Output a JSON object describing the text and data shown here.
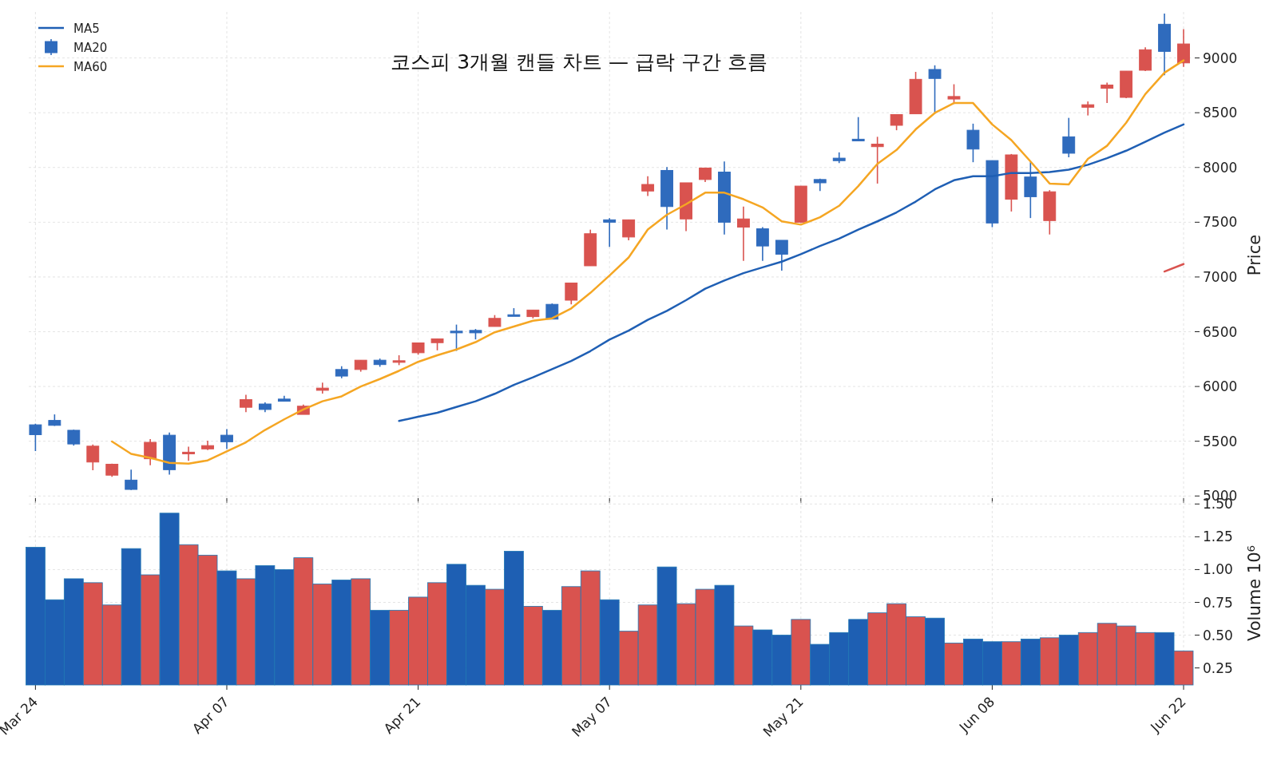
{
  "chart_data": [
    {
      "type": "candlestick",
      "title": "코스피 3개월 캔들 차트 — 급락 구간 흐름",
      "ylabel": "Price",
      "categories": [
        null,
        null,
        null,
        null,
        null,
        null,
        null,
        null,
        null,
        null,
        null,
        null,
        null,
        null,
        null,
        null,
        null,
        null,
        null,
        null,
        null,
        null,
        null,
        null,
        null,
        null,
        null,
        null,
        null,
        null,
        null,
        null,
        null,
        null,
        null,
        null,
        null,
        null,
        null,
        null,
        null,
        null,
        null,
        null,
        null,
        null,
        null,
        null,
        null,
        null,
        null,
        null,
        null,
        null,
        null,
        null,
        null,
        null,
        null,
        null,
        null
      ],
      "ylim": [
        4980,
        9420
      ],
      "yticks": [
        5000,
        5500,
        6000,
        6500,
        7000,
        7500,
        8000,
        8500,
        9000
      ],
      "grid": true,
      "legend": "top left",
      "tick_labels": "y",
      "series": [
        {
          "name": "MA5",
          "type": "line",
          "color": "#1f5fb4",
          "values": [
            null,
            null,
            null,
            null,
            null,
            null,
            null,
            null,
            null,
            null,
            null,
            null,
            null,
            null,
            null,
            null,
            null,
            null,
            null,
            5685,
            5723,
            5760,
            5813,
            5865,
            5933,
            6015,
            6083,
            6158,
            6233,
            6323,
            6428,
            6510,
            6608,
            6690,
            6788,
            6893,
            6968,
            7035,
            7088,
            7140,
            7208,
            7283,
            7350,
            7433,
            7508,
            7590,
            7688,
            7800,
            7883,
            7920,
            7920,
            7950,
            7950,
            7958,
            7980,
            8025,
            8085,
            8153,
            8235,
            8318,
            8393
          ]
        },
        {
          "name": "MA20",
          "type": "candlestick",
          "color": "#2f6bbd",
          "colors": [
            "#2f6bbd",
            "#2f6bbd",
            "#2f6bbd",
            "#d9534f",
            "#d9534f",
            "#2f6bbd",
            "#d9534f",
            "#2f6bbd",
            "#d9534f",
            "#d9534f",
            "#2f6bbd",
            "#d9534f",
            "#2f6bbd",
            "#2f6bbd",
            "#d9534f",
            "#d9534f",
            "#2f6bbd",
            "#d9534f",
            "#2f6bbd",
            "#d9534f",
            "#d9534f",
            "#d9534f",
            "#2f6bbd",
            "#2f6bbd",
            "#d9534f",
            "#2f6bbd",
            "#d9534f",
            "#2f6bbd",
            "#d9534f",
            "#d9534f",
            "#2f6bbd",
            "#d9534f",
            "#d9534f",
            "#2f6bbd",
            "#d9534f",
            "#d9534f",
            "#2f6bbd",
            "#d9534f",
            "#2f6bbd",
            "#2f6bbd",
            "#d9534f",
            "#2f6bbd",
            "#2f6bbd",
            "#2f6bbd",
            "#d9534f",
            "#d9534f",
            "#d9534f",
            "#2f6bbd",
            "#d9534f",
            "#2f6bbd",
            "#2f6bbd",
            "#d9534f",
            "#2f6bbd",
            "#d9534f",
            "#2f6bbd",
            "#d9534f",
            "#d9534f",
            "#d9534f",
            "#d9534f",
            "#2f6bbd",
            "#d9534f"
          ],
          "ohlc": [
            [
              5650,
              5660,
              5410,
              5560
            ],
            [
              5690,
              5745,
              5640,
              5645
            ],
            [
              5600,
              5605,
              5460,
              5475
            ],
            [
              5310,
              5470,
              5235,
              5455
            ],
            [
              5190,
              5295,
              5175,
              5290
            ],
            [
              5145,
              5240,
              5055,
              5060
            ],
            [
              5340,
              5520,
              5280,
              5490
            ],
            [
              5555,
              5580,
              5195,
              5240
            ],
            [
              5385,
              5450,
              5320,
              5400
            ],
            [
              5430,
              5505,
              5420,
              5460
            ],
            [
              5555,
              5610,
              5430,
              5495
            ],
            [
              5810,
              5925,
              5765,
              5880
            ],
            [
              5840,
              5855,
              5765,
              5790
            ],
            [
              5885,
              5915,
              5865,
              5865
            ],
            [
              5745,
              5835,
              5745,
              5820
            ],
            [
              5965,
              6035,
              5935,
              5985
            ],
            [
              6155,
              6185,
              6075,
              6095
            ],
            [
              6155,
              6240,
              6135,
              6240
            ],
            [
              6240,
              6255,
              6180,
              6200
            ],
            [
              6225,
              6285,
              6195,
              6235
            ],
            [
              6308,
              6400,
              6290,
              6398
            ],
            [
              6400,
              6435,
              6330,
              6435
            ],
            [
              6505,
              6565,
              6325,
              6490
            ],
            [
              6512,
              6525,
              6430,
              6490
            ],
            [
              6548,
              6652,
              6548,
              6622
            ],
            [
              6655,
              6715,
              6645,
              6645
            ],
            [
              6638,
              6698,
              6622,
              6698
            ],
            [
              6750,
              6758,
              6615,
              6615
            ],
            [
              6788,
              6945,
              6750,
              6945
            ],
            [
              7102,
              7432,
              7102,
              7395
            ],
            [
              7522,
              7537,
              7275,
              7500
            ],
            [
              7365,
              7522,
              7335,
              7522
            ],
            [
              7785,
              7920,
              7740,
              7845
            ],
            [
              7973,
              8003,
              7433,
              7643
            ],
            [
              7530,
              7860,
              7418,
              7860
            ],
            [
              7890,
              7995,
              7868,
              7995
            ],
            [
              7958,
              8055,
              7388,
              7500
            ],
            [
              7455,
              7643,
              7148,
              7530
            ],
            [
              7440,
              7455,
              7148,
              7283
            ],
            [
              7335,
              7335,
              7058,
              7208
            ],
            [
              7500,
              7830,
              7493,
              7830
            ],
            [
              7890,
              7898,
              7785,
              7860
            ],
            [
              8085,
              8138,
              8040,
              8062
            ],
            [
              8258,
              8460,
              8243,
              8243
            ],
            [
              8190,
              8280,
              7853,
              8213
            ],
            [
              8385,
              8483,
              8340,
              8483
            ],
            [
              8490,
              8873,
              8490,
              8805
            ],
            [
              8895,
              8933,
              8490,
              8813
            ],
            [
              8625,
              8760,
              8580,
              8648
            ],
            [
              8340,
              8400,
              8048,
              8168
            ],
            [
              8063,
              8063,
              7455,
              7493
            ],
            [
              7710,
              8123,
              7598,
              8115
            ],
            [
              7913,
              8048,
              7538,
              7733
            ],
            [
              7515,
              7793,
              7388,
              7778
            ],
            [
              8280,
              8453,
              8093,
              8130
            ],
            [
              8550,
              8603,
              8475,
              8573
            ],
            [
              8723,
              8775,
              8588,
              8753
            ],
            [
              8640,
              8880,
              8633,
              8880
            ],
            [
              8888,
              9098,
              8880,
              9075
            ],
            [
              9308,
              9405,
              8843,
              9060
            ],
            [
              8955,
              9263,
              8918,
              9128
            ]
          ]
        },
        {
          "name": "MA60",
          "type": "line",
          "color": "#f5a623",
          "values": [
            null,
            null,
            null,
            null,
            5498,
            5385,
            5348,
            5303,
            5295,
            5325,
            5408,
            5490,
            5603,
            5700,
            5790,
            5865,
            5910,
            6000,
            6068,
            6143,
            6225,
            6285,
            6338,
            6405,
            6495,
            6548,
            6600,
            6623,
            6713,
            6855,
            7013,
            7178,
            7433,
            7568,
            7665,
            7770,
            7770,
            7710,
            7635,
            7508,
            7478,
            7545,
            7650,
            7830,
            8033,
            8160,
            8348,
            8498,
            8588,
            8588,
            8393,
            8250,
            8055,
            7853,
            7845,
            8078,
            8198,
            8408,
            8670,
            8865,
            8978
          ]
        },
        {
          "type": "line",
          "color": "#d9534f",
          "values": [
            null,
            null,
            null,
            null,
            null,
            null,
            null,
            null,
            null,
            null,
            null,
            null,
            null,
            null,
            null,
            null,
            null,
            null,
            null,
            null,
            null,
            null,
            null,
            null,
            null,
            null,
            null,
            null,
            null,
            null,
            null,
            null,
            null,
            null,
            null,
            null,
            null,
            null,
            null,
            null,
            null,
            null,
            null,
            null,
            null,
            null,
            null,
            null,
            null,
            null,
            null,
            null,
            null,
            null,
            null,
            null,
            null,
            null,
            null,
            7050,
            7118
          ]
        }
      ]
    },
    {
      "type": "bar",
      "ylabel": "Volume 10⁶",
      "categories": [
        "Mar 24",
        null,
        null,
        null,
        null,
        null,
        null,
        null,
        null,
        null,
        "Apr 07",
        null,
        null,
        null,
        null,
        null,
        null,
        null,
        null,
        null,
        "Apr 21",
        null,
        null,
        null,
        null,
        null,
        null,
        null,
        null,
        null,
        "May 07",
        null,
        null,
        null,
        null,
        null,
        null,
        null,
        null,
        null,
        "May 21",
        null,
        null,
        null,
        null,
        null,
        null,
        null,
        null,
        null,
        "Jun 08",
        null,
        null,
        null,
        null,
        null,
        null,
        null,
        null,
        null,
        "Jun 22"
      ],
      "ylim": [
        0.12,
        1.52
      ],
      "yticks": [
        {
          "value": 0.25,
          "label": "0.25"
        },
        {
          "value": 0.5,
          "label": "0.50"
        },
        {
          "value": 0.75,
          "label": "0.75"
        },
        {
          "value": 1.0,
          "label": "1.00"
        },
        {
          "value": 1.25,
          "label": "1.25"
        },
        {
          "value": 1.5,
          "label": "1.50"
        }
      ],
      "grid": true,
      "values": [
        1.17,
        0.77,
        0.93,
        0.9,
        0.73,
        1.16,
        0.96,
        1.43,
        1.19,
        1.11,
        0.99,
        0.93,
        1.03,
        1.0,
        1.09,
        0.89,
        0.92,
        0.93,
        0.69,
        0.69,
        0.79,
        0.9,
        1.04,
        0.88,
        0.85,
        1.14,
        0.72,
        0.69,
        0.87,
        0.99,
        0.77,
        0.53,
        0.73,
        1.02,
        0.74,
        0.85,
        0.88,
        0.57,
        0.54,
        0.5,
        0.62,
        0.43,
        0.52,
        0.62,
        0.67,
        0.74,
        0.64,
        0.63,
        0.44,
        0.47,
        0.45,
        0.45,
        0.47,
        0.48,
        0.5,
        0.52,
        0.59,
        0.57,
        0.52,
        0.52,
        0.38
      ],
      "colors": [
        "#1e5fb3",
        "#1e5fb3",
        "#1e5fb3",
        "#d9534f",
        "#d9534f",
        "#1e5fb3",
        "#d9534f",
        "#1e5fb3",
        "#d9534f",
        "#d9534f",
        "#1e5fb3",
        "#d9534f",
        "#1e5fb3",
        "#1e5fb3",
        "#d9534f",
        "#d9534f",
        "#1e5fb3",
        "#d9534f",
        "#1e5fb3",
        "#d9534f",
        "#d9534f",
        "#d9534f",
        "#1e5fb3",
        "#1e5fb3",
        "#d9534f",
        "#1e5fb3",
        "#d9534f",
        "#1e5fb3",
        "#d9534f",
        "#d9534f",
        "#1e5fb3",
        "#d9534f",
        "#d9534f",
        "#1e5fb3",
        "#d9534f",
        "#d9534f",
        "#1e5fb3",
        "#d9534f",
        "#1e5fb3",
        "#1e5fb3",
        "#d9534f",
        "#1e5fb3",
        "#1e5fb3",
        "#1e5fb3",
        "#d9534f",
        "#d9534f",
        "#d9534f",
        "#1e5fb3",
        "#d9534f",
        "#1e5fb3",
        "#1e5fb3",
        "#d9534f",
        "#1e5fb3",
        "#d9534f",
        "#1e5fb3",
        "#d9534f",
        "#d9534f",
        "#d9534f",
        "#d9534f",
        "#1e5fb3",
        "#d9534f"
      ]
    }
  ]
}
